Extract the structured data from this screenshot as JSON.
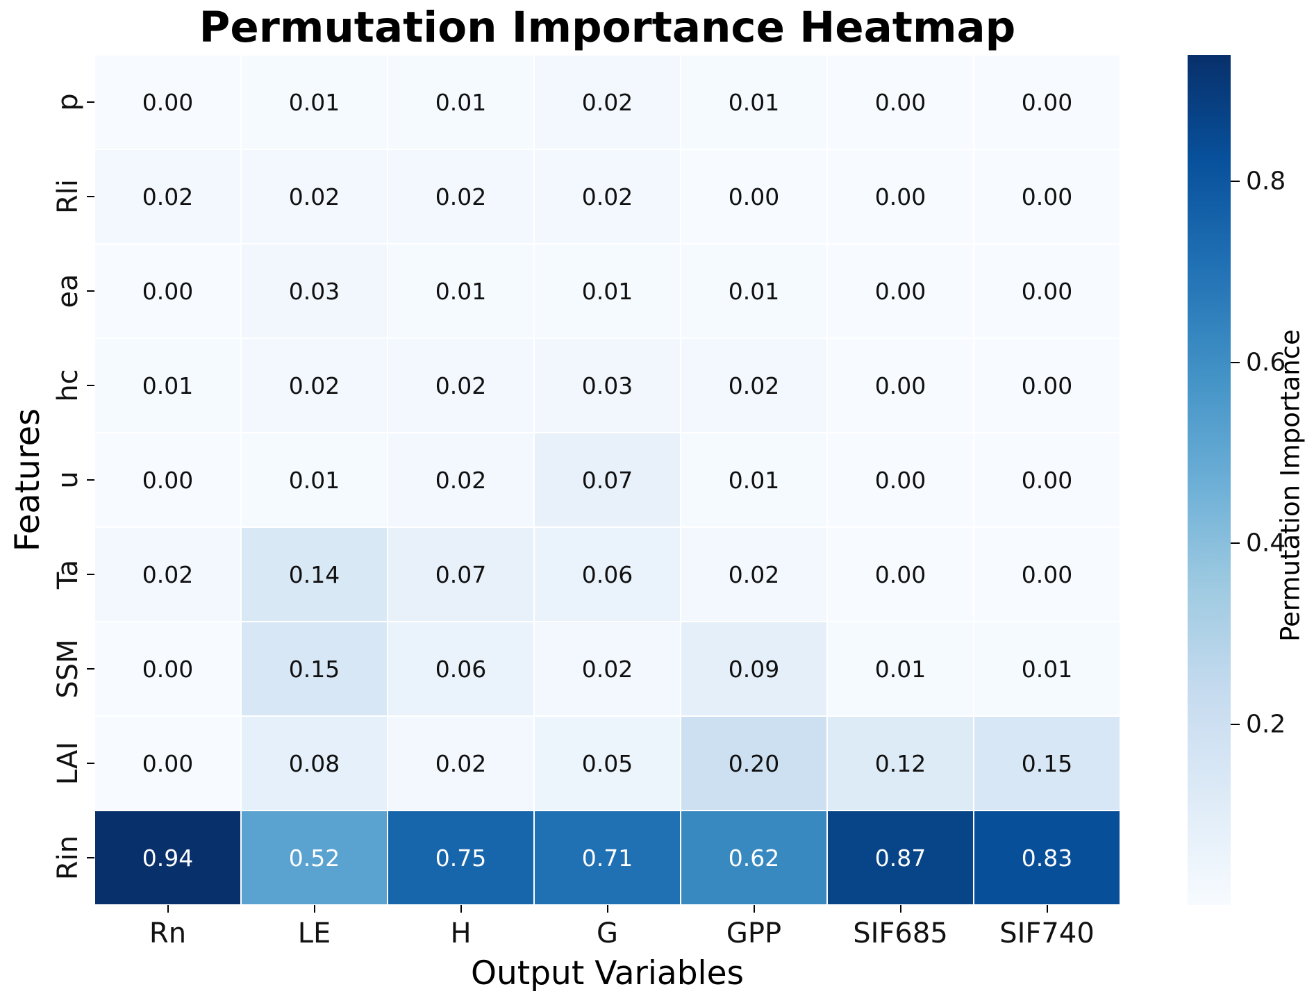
{
  "chart_data": {
    "type": "heatmap",
    "title": "Permutation Importance Heatmap",
    "xlabel": "Output Variables",
    "ylabel": "Features",
    "x_categories": [
      "Rn",
      "LE",
      "H",
      "G",
      "GPP",
      "SIF685",
      "SIF740"
    ],
    "y_categories": [
      "p",
      "Rli",
      "ea",
      "hc",
      "u",
      "Ta",
      "SSM",
      "LAI",
      "Rin"
    ],
    "values": [
      [
        0.0,
        0.01,
        0.01,
        0.02,
        0.01,
        0.0,
        0.0
      ],
      [
        0.02,
        0.02,
        0.02,
        0.02,
        0.0,
        0.0,
        0.0
      ],
      [
        0.0,
        0.03,
        0.01,
        0.01,
        0.01,
        0.0,
        0.0
      ],
      [
        0.01,
        0.02,
        0.02,
        0.03,
        0.02,
        0.0,
        0.0
      ],
      [
        0.0,
        0.01,
        0.02,
        0.07,
        0.01,
        0.0,
        0.0
      ],
      [
        0.02,
        0.14,
        0.07,
        0.06,
        0.02,
        0.0,
        0.0
      ],
      [
        0.0,
        0.15,
        0.06,
        0.02,
        0.09,
        0.01,
        0.01
      ],
      [
        0.0,
        0.08,
        0.02,
        0.05,
        0.2,
        0.12,
        0.15
      ],
      [
        0.94,
        0.52,
        0.75,
        0.71,
        0.62,
        0.87,
        0.83
      ]
    ],
    "value_decimals": 2,
    "vmin": 0.0,
    "vmax": 0.94,
    "grid_on": false,
    "cell_border_color": "#ffffff",
    "annotation_dark_color": "#101010",
    "annotation_light_color": "#ffffff",
    "colorbar": {
      "label": "Permutation Importance",
      "tick_values": [
        0.8,
        0.6,
        0.4,
        0.2
      ],
      "tick_labels": [
        "0.8",
        "0.6",
        "0.4",
        "0.2"
      ]
    },
    "colormap": {
      "name": "Blues",
      "stops": [
        {
          "pos": 0.0,
          "color": "#f7fbff"
        },
        {
          "pos": 0.125,
          "color": "#deebf7"
        },
        {
          "pos": 0.25,
          "color": "#c6dbef"
        },
        {
          "pos": 0.375,
          "color": "#9ecae1"
        },
        {
          "pos": 0.5,
          "color": "#6baed6"
        },
        {
          "pos": 0.625,
          "color": "#4292c6"
        },
        {
          "pos": 0.75,
          "color": "#2171b5"
        },
        {
          "pos": 0.875,
          "color": "#08519c"
        },
        {
          "pos": 1.0,
          "color": "#08306b"
        }
      ]
    },
    "background_color": "#ffffff"
  }
}
